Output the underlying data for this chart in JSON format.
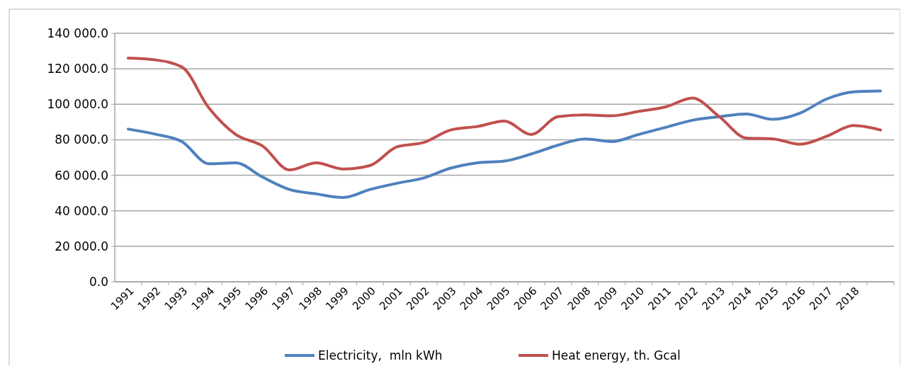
{
  "chart_data": {
    "type": "line",
    "categories": [
      "1991",
      "1992",
      "1993",
      "1994",
      "1995",
      "1996",
      "1997",
      "1998",
      "1999",
      "2000",
      "2001",
      "2002",
      "2003",
      "2004",
      "2005",
      "2006",
      "2007",
      "2008",
      "2009",
      "2010",
      "2011",
      "2012",
      "2013",
      "2014",
      "2015",
      "2016",
      "2017",
      "2018",
      null
    ],
    "series": [
      {
        "name": "Electricity,  mln kWh",
        "color": "#4f81bd",
        "values": [
          86000,
          83200,
          79000,
          66500,
          67000,
          59000,
          52000,
          49500,
          47500,
          52000,
          55500,
          58500,
          64000,
          67000,
          68000,
          72000,
          77000,
          80500,
          79000,
          83000,
          87000,
          91000,
          93000,
          94500,
          91500,
          95000,
          103000,
          107000,
          107500
        ]
      },
      {
        "name": "Heat energy, th. Gcal",
        "color": "#c0504d",
        "values": [
          126000,
          125000,
          121000,
          98000,
          83000,
          76500,
          63000,
          67000,
          63500,
          65500,
          76000,
          78500,
          85500,
          87500,
          90500,
          83000,
          93000,
          94000,
          93500,
          96000,
          98500,
          103500,
          93000,
          81000,
          80500,
          77500,
          82000,
          88000,
          85500
        ]
      }
    ],
    "ylim": [
      0,
      140000
    ],
    "yticks": [
      {
        "value": 0,
        "label": "0.0"
      },
      {
        "value": 20000,
        "label": "20 000.0"
      },
      {
        "value": 40000,
        "label": "40 000.0"
      },
      {
        "value": 60000,
        "label": "60 000.0"
      },
      {
        "value": 80000,
        "label": "80 000.0"
      },
      {
        "value": 100000,
        "label": "100 000.0"
      },
      {
        "value": 120000,
        "label": "120 000.0"
      },
      {
        "value": 140000,
        "label": "140 000.0"
      }
    ],
    "grid": "y",
    "legend": "bottom",
    "marker": "none",
    "line_style": "solid"
  }
}
